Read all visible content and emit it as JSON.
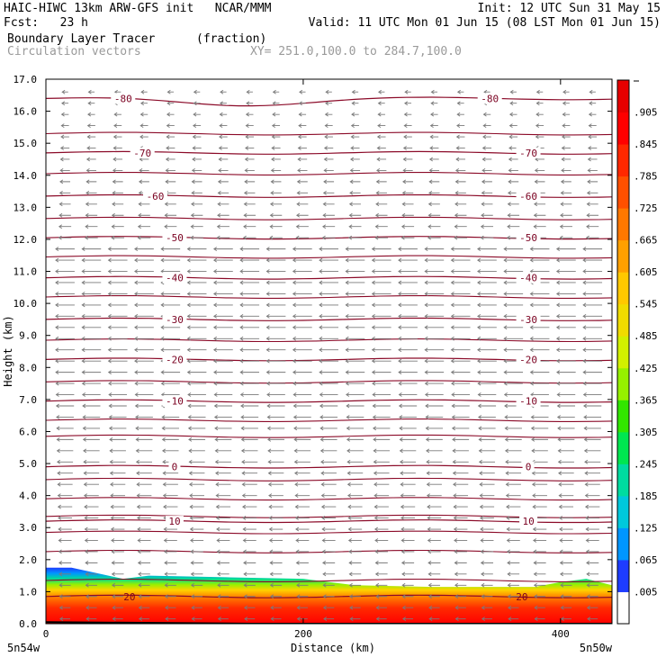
{
  "header": {
    "title_left": "HAIC-HIWC 13km ARW-GFS init   NCAR/MMM",
    "init": "Init: 12 UTC Sun 31 May 15",
    "fcst": "Fcst:   23 h",
    "valid": "Valid: 11 UTC Mon 01 Jun 15 (08 LST Mon 01 Jun 15)",
    "field_name": "Boundary Layer Tracer",
    "field_units": "(fraction)",
    "vector_name": "Circulation vectors",
    "xy_range": "XY= 251.0,100.0 to 284.7,100.0"
  },
  "chart_data": {
    "type": "heatmap",
    "title": "Boundary Layer Tracer",
    "units": "fraction",
    "xlabel": "Distance (km)",
    "ylabel": "Height (km)",
    "xlim": [
      0,
      440
    ],
    "ylim": [
      0,
      17
    ],
    "x_ticks": [
      0,
      200,
      400
    ],
    "y_ticks": [
      "0.0",
      "1.0",
      "2.0",
      "3.0",
      "4.0",
      "5.0",
      "6.0",
      "7.0",
      "8.0",
      "9.0",
      "10.0",
      "11.0",
      "12.0",
      "13.0",
      "14.0",
      "15.0",
      "16.0",
      "17.0"
    ],
    "x_end_labels": {
      "left": "5n54w",
      "right": "5n50w"
    },
    "colorbar": {
      "labels": [
        ".005",
        ".065",
        ".125",
        ".185",
        ".245",
        ".305",
        ".365",
        ".425",
        ".485",
        ".545",
        ".605",
        ".665",
        ".725",
        ".785",
        ".845",
        ".905"
      ],
      "colors": [
        "#ffffff",
        "#1e3cff",
        "#0096ff",
        "#00c8dc",
        "#00dca0",
        "#00e650",
        "#32e600",
        "#96f000",
        "#d2f000",
        "#f0dc00",
        "#ffc800",
        "#ffa000",
        "#ff7800",
        "#ff5000",
        "#ff2800",
        "#ff0000",
        "#e60000"
      ]
    },
    "tracer_top_km": [
      {
        "x": 0,
        "z": 1.75
      },
      {
        "x": 20,
        "z": 1.75
      },
      {
        "x": 60,
        "z": 1.4
      },
      {
        "x": 80,
        "z": 1.5
      },
      {
        "x": 140,
        "z": 1.45
      },
      {
        "x": 200,
        "z": 1.4
      },
      {
        "x": 240,
        "z": 1.2
      },
      {
        "x": 300,
        "z": 1.15
      },
      {
        "x": 380,
        "z": 1.15
      },
      {
        "x": 400,
        "z": 1.3
      },
      {
        "x": 420,
        "z": 1.4
      },
      {
        "x": 440,
        "z": 1.2
      }
    ],
    "temperature_contours": [
      {
        "value": "-80",
        "z": 16.4,
        "dip": 0.2,
        "labels_x": [
          60,
          345
        ]
      },
      {
        "value": "-70",
        "z": 14.7,
        "dip": 0.0,
        "labels_x": [
          75,
          375
        ]
      },
      {
        "value": "-60",
        "z": 13.35,
        "dip": 0.0,
        "labels_x": [
          85,
          375
        ]
      },
      {
        "value": "-50",
        "z": 12.05,
        "dip": 0.0,
        "labels_x": [
          100,
          375
        ]
      },
      {
        "value": "-40",
        "z": 10.8,
        "dip": 0.0,
        "labels_x": [
          100,
          375
        ]
      },
      {
        "value": "-30",
        "z": 9.5,
        "dip": 0.0,
        "labels_x": [
          100,
          375
        ]
      },
      {
        "value": "-20",
        "z": 8.25,
        "dip": 0.0,
        "labels_x": [
          100,
          375
        ]
      },
      {
        "value": "-10",
        "z": 6.95,
        "dip": 0.0,
        "labels_x": [
          100,
          375
        ]
      },
      {
        "value": "0",
        "z": 4.9,
        "dip": 0.0,
        "labels_x": [
          100,
          375
        ]
      },
      {
        "value": "10",
        "z": 3.2,
        "dip": 0.0,
        "labels_x": [
          100,
          375
        ]
      },
      {
        "value": "20",
        "z": 0.85,
        "dip": 0.0,
        "labels_x": [
          65,
          370
        ]
      }
    ],
    "extra_isotherm_levels_km": [
      15.3,
      14.05,
      12.65,
      11.45,
      10.2,
      8.85,
      7.55,
      6.35,
      5.85,
      4.5,
      3.9,
      3.35,
      2.85,
      2.25,
      1.35
    ]
  }
}
